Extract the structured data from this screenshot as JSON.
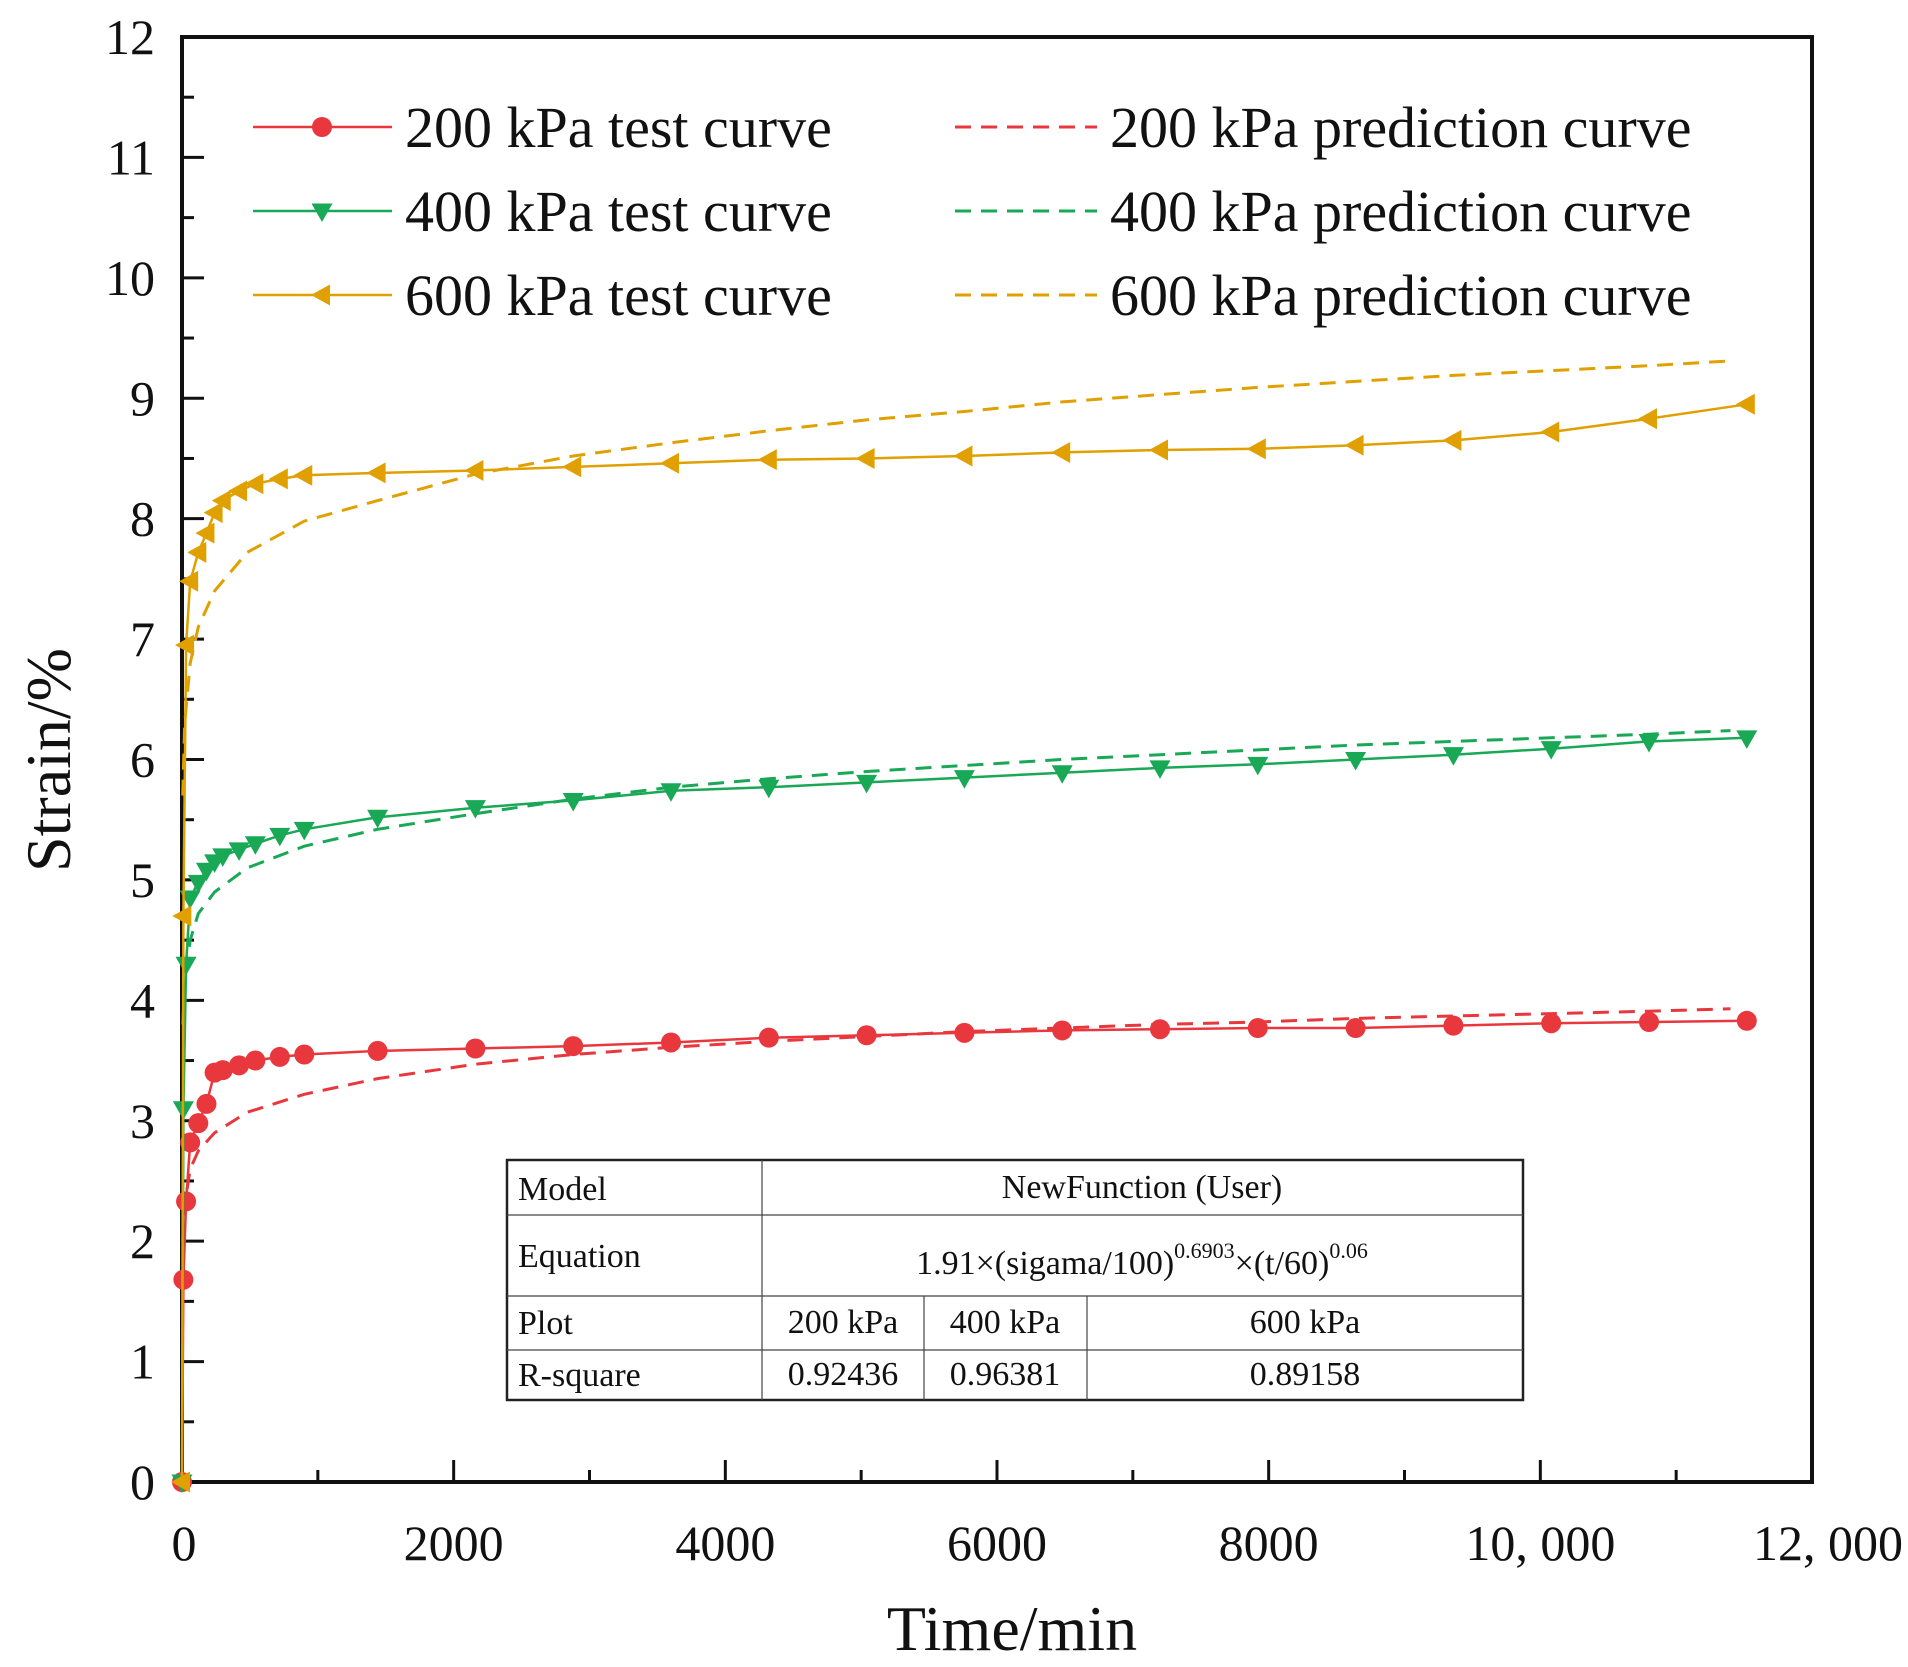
{
  "chart_data": {
    "type": "line",
    "title": "",
    "xlabel": "Time/min",
    "ylabel": "Strain/%",
    "xlim": [
      0,
      12000
    ],
    "ylim": [
      0,
      12
    ],
    "xticks": [
      0,
      2000,
      4000,
      6000,
      8000,
      10000,
      12000
    ],
    "xtick_labels": [
      "0",
      "2000",
      "4000",
      "6000",
      "8000",
      "10, 000",
      "12, 000"
    ],
    "yticks": [
      0,
      1,
      2,
      3,
      4,
      5,
      6,
      7,
      8,
      9,
      10,
      11,
      12
    ],
    "ytick_labels": [
      "0",
      "1",
      "2",
      "3",
      "4",
      "5",
      "6",
      "7",
      "8",
      "9",
      "10",
      "11",
      "12"
    ],
    "grid": false,
    "legend_position": "top",
    "test_x": [
      0,
      10,
      30,
      60,
      120,
      180,
      240,
      300,
      420,
      540,
      720,
      900,
      1440,
      2160,
      2880,
      3600,
      4320,
      5040,
      5760,
      6480,
      7200,
      7920,
      8640,
      9360,
      10080,
      10800,
      11520
    ],
    "prediction_x": [
      5,
      20,
      60,
      120,
      240,
      480,
      900,
      1440,
      2160,
      2880,
      3600,
      4320,
      5040,
      5760,
      6480,
      7200,
      7920,
      8640,
      9360,
      10080,
      10800,
      11400
    ],
    "series": [
      {
        "name": "200 kPa test curve",
        "style": "solid",
        "marker": "circle",
        "color": "#e8383d",
        "values": [
          0.0,
          1.68,
          2.33,
          2.82,
          2.98,
          3.14,
          3.4,
          3.42,
          3.46,
          3.5,
          3.53,
          3.55,
          3.58,
          3.6,
          3.62,
          3.65,
          3.69,
          3.71,
          3.73,
          3.75,
          3.76,
          3.77,
          3.77,
          3.79,
          3.81,
          3.82,
          3.83
        ]
      },
      {
        "name": "400 kPa test curve",
        "style": "solid",
        "marker": "triangle-down",
        "color": "#19a855",
        "values": [
          0.0,
          3.1,
          4.3,
          4.85,
          4.98,
          5.08,
          5.15,
          5.2,
          5.25,
          5.3,
          5.37,
          5.42,
          5.52,
          5.6,
          5.66,
          5.74,
          5.77,
          5.81,
          5.85,
          5.89,
          5.93,
          5.96,
          6.0,
          6.04,
          6.09,
          6.15,
          6.18
        ]
      },
      {
        "name": "600 kPa test curve",
        "style": "solid",
        "marker": "triangle-left",
        "color": "#e0a000",
        "values": [
          0.0,
          4.7,
          6.95,
          7.48,
          7.72,
          7.88,
          8.05,
          8.15,
          8.23,
          8.29,
          8.33,
          8.36,
          8.38,
          8.4,
          8.43,
          8.46,
          8.49,
          8.5,
          8.52,
          8.55,
          8.57,
          8.58,
          8.61,
          8.65,
          8.72,
          8.83,
          8.95
        ]
      },
      {
        "name": "200 kPa prediction curve",
        "style": "dashed",
        "marker": "none",
        "color": "#e8383d",
        "values": [
          2.0,
          2.3,
          2.6,
          2.75,
          2.9,
          3.07,
          3.22,
          3.35,
          3.47,
          3.55,
          3.61,
          3.66,
          3.7,
          3.74,
          3.77,
          3.8,
          3.82,
          3.85,
          3.87,
          3.89,
          3.91,
          3.93
        ]
      },
      {
        "name": "400 kPa prediction curve",
        "style": "dashed",
        "marker": "none",
        "color": "#19a855",
        "values": [
          3.8,
          4.15,
          4.5,
          4.72,
          4.9,
          5.1,
          5.28,
          5.42,
          5.55,
          5.67,
          5.77,
          5.84,
          5.9,
          5.95,
          6.0,
          6.04,
          6.08,
          6.12,
          6.15,
          6.18,
          6.21,
          6.24
        ]
      },
      {
        "name": "600 kPa prediction curve",
        "style": "dashed",
        "marker": "none",
        "color": "#e0a000",
        "values": [
          5.7,
          6.3,
          6.8,
          7.1,
          7.4,
          7.72,
          7.98,
          8.15,
          8.37,
          8.52,
          8.63,
          8.73,
          8.82,
          8.89,
          8.97,
          9.03,
          9.09,
          9.14,
          9.19,
          9.23,
          9.27,
          9.31
        ]
      }
    ],
    "fit_table": {
      "model_label": "Model",
      "model_value": "NewFunction (User)",
      "equation_label": "Equation",
      "equation_main": "1.91×(sigama/100)",
      "equation_exp1": "0.6903",
      "equation_mid": "×(t/60)",
      "equation_exp2": "0.06",
      "plot_label": "Plot",
      "plots": [
        "200 kPa",
        "400 kPa",
        "600 kPa"
      ],
      "rsq_label": "R-square",
      "rsq": [
        "0.92436",
        "0.96381",
        "0.89158"
      ]
    }
  }
}
